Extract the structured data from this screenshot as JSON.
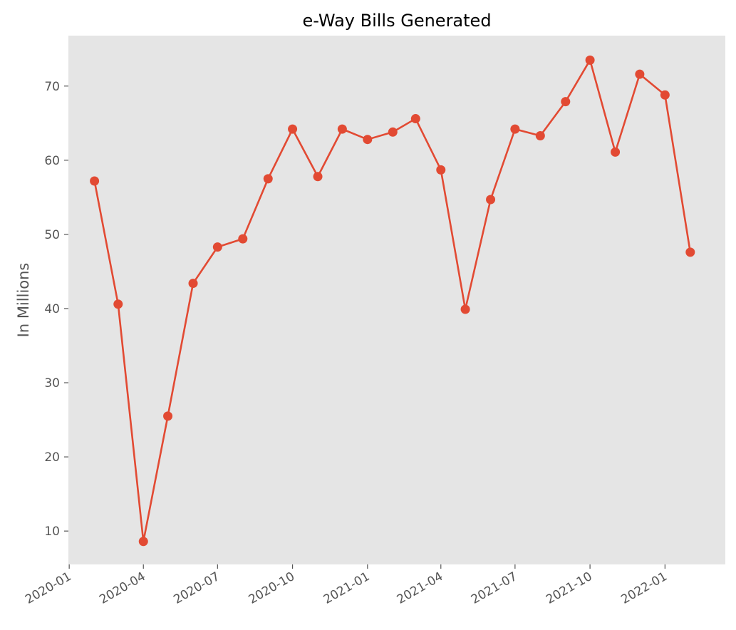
{
  "chart_data": {
    "type": "line",
    "title": "e-Way Bills Generated",
    "xlabel": "",
    "ylabel": "In Millions",
    "x_ticks": [
      "2020-01",
      "2020-04",
      "2020-07",
      "2020-10",
      "2021-01",
      "2021-04",
      "2021-07",
      "2021-10",
      "2022-01"
    ],
    "y_ticks": [
      10,
      20,
      30,
      40,
      50,
      60,
      70
    ],
    "xlim": [
      "2019-12-31",
      "2022-03-16"
    ],
    "ylim": [
      5.5,
      76.8
    ],
    "grid": false,
    "style": {
      "background": "#e5e5e5",
      "line_color": "#e24a33"
    },
    "series": [
      {
        "x": [
          "2020-02-01",
          "2020-03-01",
          "2020-04-01",
          "2020-05-01",
          "2020-06-01",
          "2020-07-01",
          "2020-08-01",
          "2020-09-01",
          "2020-10-01",
          "2020-11-01",
          "2020-12-01",
          "2021-01-01",
          "2021-02-01",
          "2021-03-01",
          "2021-04-01",
          "2021-05-01",
          "2021-06-01",
          "2021-07-01",
          "2021-08-01",
          "2021-09-01",
          "2021-10-01",
          "2021-11-01",
          "2021-12-01",
          "2022-01-01",
          "2022-02-01"
        ],
        "values": [
          57.2,
          40.6,
          8.6,
          25.5,
          43.4,
          48.3,
          49.4,
          57.5,
          64.2,
          57.8,
          64.2,
          62.8,
          63.8,
          65.6,
          58.7,
          39.9,
          54.7,
          64.2,
          63.3,
          67.9,
          73.5,
          61.1,
          71.6,
          68.8,
          47.6
        ]
      }
    ]
  }
}
